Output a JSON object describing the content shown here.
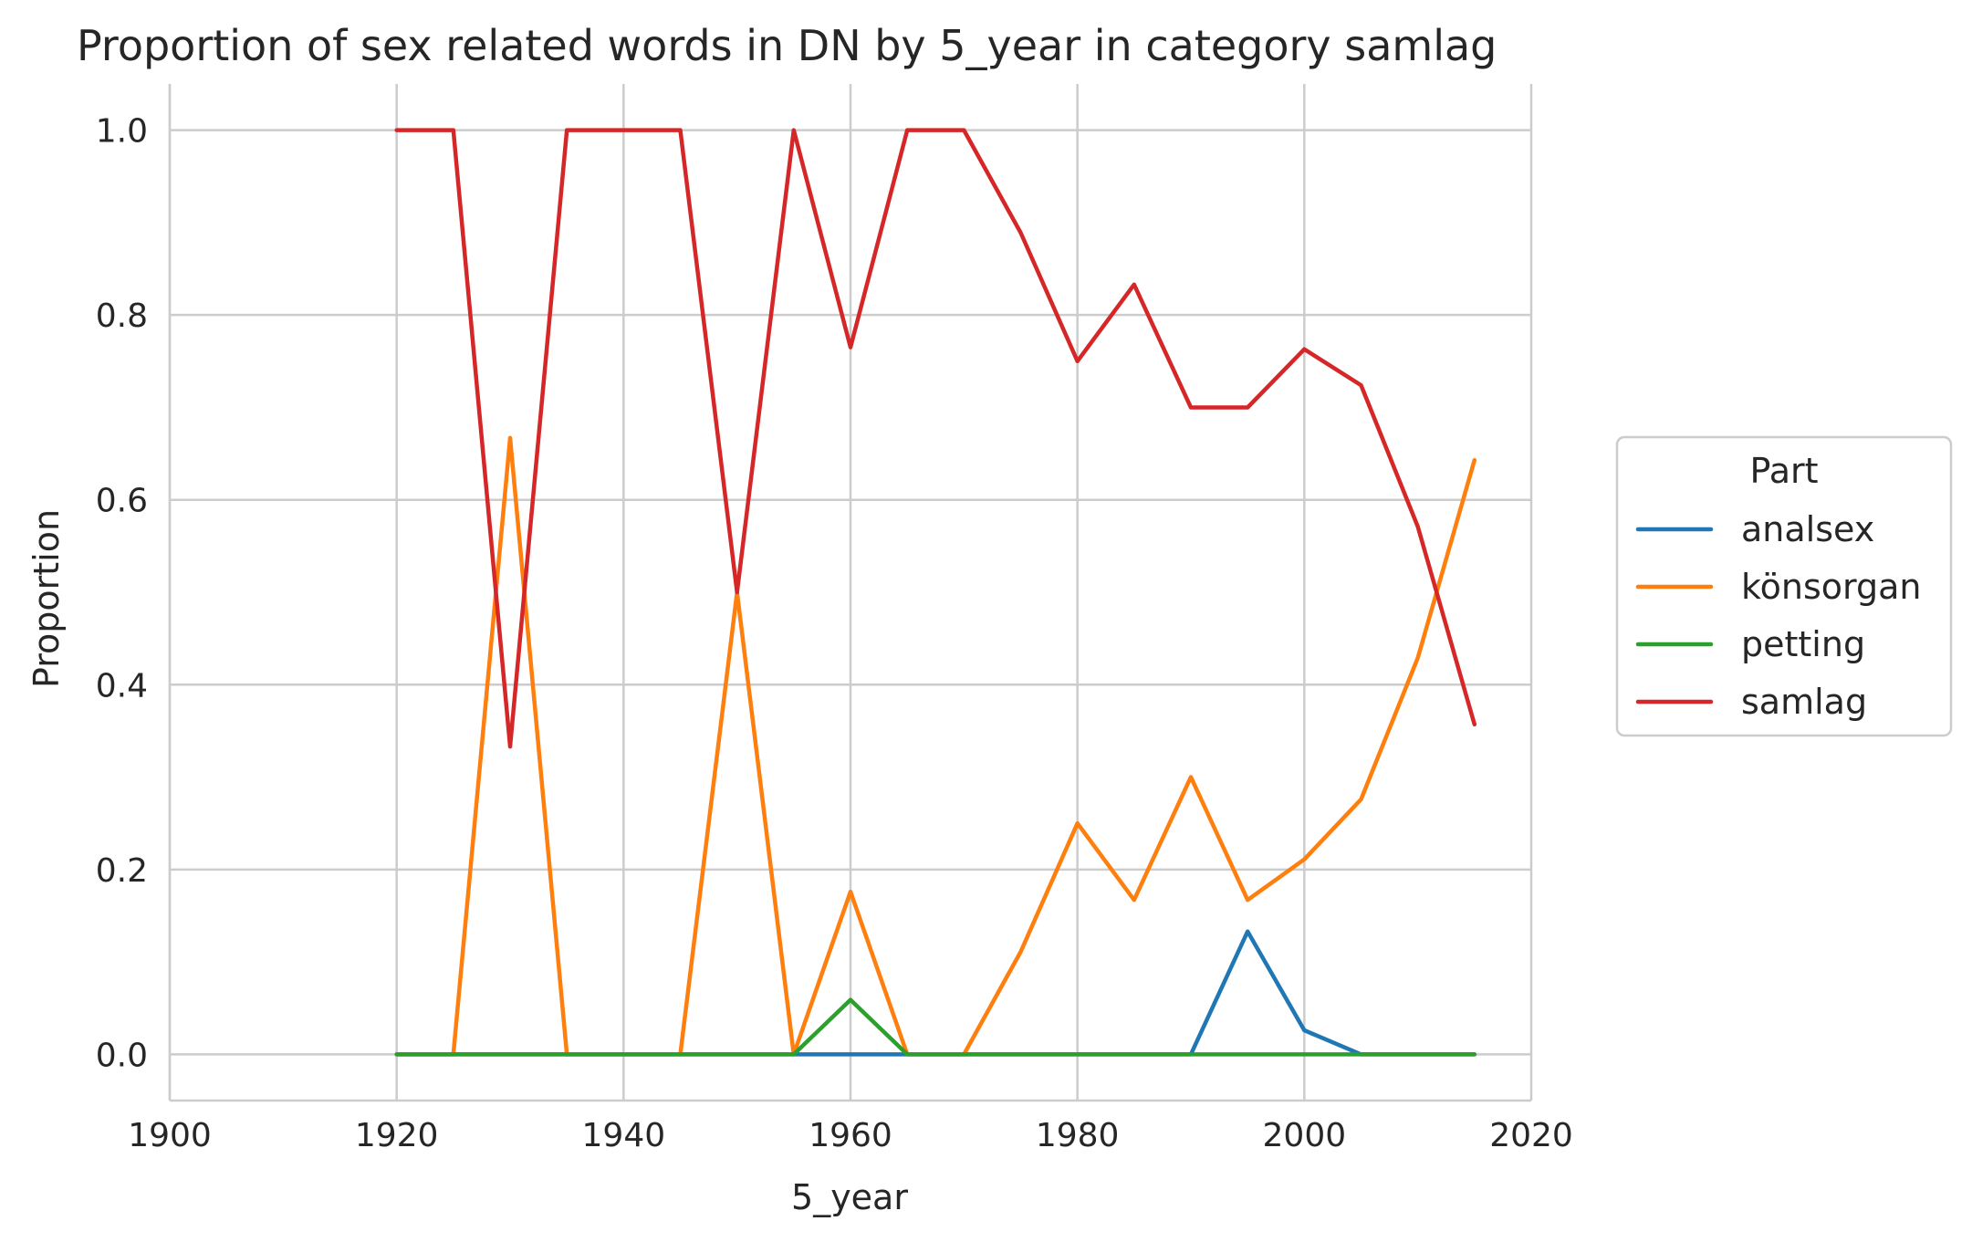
{
  "chart_data": {
    "type": "line",
    "title": "Proportion of sex related words in DN by 5_year in category samlag",
    "xlabel": "5_year",
    "ylabel": "Proportion",
    "xlim": [
      1900,
      2020
    ],
    "ylim": [
      -0.05,
      1.05
    ],
    "xticks": [
      1900,
      1920,
      1940,
      1960,
      1980,
      2000,
      2020
    ],
    "yticks": [
      0.0,
      0.2,
      0.4,
      0.6,
      0.8,
      1.0
    ],
    "grid": true,
    "legend": {
      "title": "Part",
      "placement": "right"
    },
    "x": [
      1920,
      1925,
      1930,
      1935,
      1940,
      1945,
      1950,
      1955,
      1960,
      1965,
      1970,
      1975,
      1980,
      1985,
      1990,
      1995,
      2000,
      2005,
      2010,
      2015
    ],
    "series": [
      {
        "name": "analsex",
        "color": "#1f77b4",
        "values": [
          0,
          0,
          0,
          0,
          0,
          0,
          0,
          0,
          0,
          0,
          0,
          0,
          0,
          0,
          0,
          0.133,
          0.026,
          0,
          0,
          0
        ]
      },
      {
        "name": "könsorgan",
        "color": "#ff7f0e",
        "values": [
          0,
          0,
          0.667,
          0,
          0,
          0,
          0.5,
          0,
          0.176,
          0,
          0,
          0.111,
          0.25,
          0.167,
          0.3,
          0.167,
          0.211,
          0.276,
          0.429,
          0.643
        ]
      },
      {
        "name": "petting",
        "color": "#2ca02c",
        "values": [
          0,
          0,
          0,
          0,
          0,
          0,
          0,
          0,
          0.059,
          0,
          0,
          0,
          0,
          0,
          0,
          0,
          0,
          0,
          0,
          0
        ]
      },
      {
        "name": "samlag",
        "color": "#d62728",
        "values": [
          1,
          1,
          0.333,
          1,
          1,
          1,
          0.5,
          1,
          0.765,
          1,
          1,
          0.889,
          0.75,
          0.833,
          0.7,
          0.7,
          0.763,
          0.724,
          0.571,
          0.357
        ]
      }
    ]
  }
}
